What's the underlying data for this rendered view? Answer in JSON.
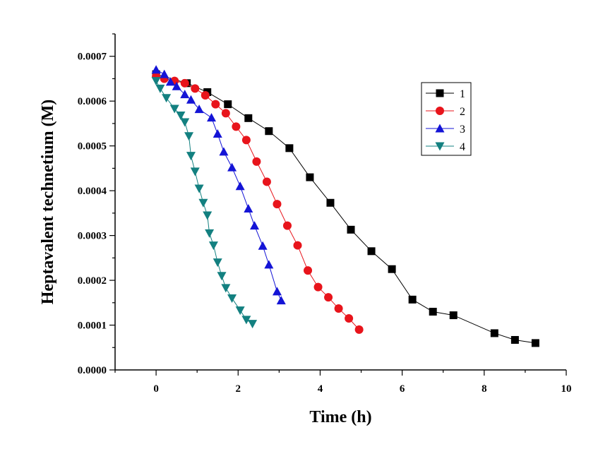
{
  "chart_data": {
    "type": "scatter",
    "xlabel": "Time (h)",
    "ylabel": "Heptavalent technetium (M)",
    "xlim": [
      -1,
      10
    ],
    "ylim": [
      0,
      0.00075
    ],
    "xticks": [
      0,
      2,
      4,
      6,
      8,
      10
    ],
    "xtick_labels": [
      "0",
      "2",
      "4",
      "6",
      "8",
      "10"
    ],
    "yticks": [
      0,
      0.0001,
      0.0002,
      0.0003,
      0.0004,
      0.0005,
      0.0006,
      0.0007
    ],
    "ytick_labels": [
      "0.0000",
      "0.0001",
      "0.0002",
      "0.0003",
      "0.0004",
      "0.0005",
      "0.0006",
      "0.0007"
    ],
    "grid": false,
    "legend_position": "top-right",
    "series": [
      {
        "name": "1",
        "marker": "square",
        "color": "#000000",
        "x": [
          0,
          0.75,
          1.25,
          1.75,
          2.25,
          2.75,
          3.25,
          3.75,
          4.25,
          4.75,
          5.25,
          5.75,
          6.25,
          6.75,
          7.25,
          8.25,
          8.75,
          9.25
        ],
        "y": [
          0.00066,
          0.00064,
          0.00062,
          0.000593,
          0.000562,
          0.000533,
          0.000495,
          0.00043,
          0.000373,
          0.000313,
          0.000265,
          0.000225,
          0.000157,
          0.00013,
          0.000122,
          8.2e-05,
          6.7e-05,
          6e-05
        ]
      },
      {
        "name": "2",
        "marker": "circle",
        "color": "#e8141b",
        "x": [
          0,
          0.2,
          0.45,
          0.7,
          0.95,
          1.2,
          1.45,
          1.7,
          1.95,
          2.2,
          2.45,
          2.7,
          2.95,
          3.2,
          3.45,
          3.7,
          3.95,
          4.2,
          4.45,
          4.7,
          4.95
        ],
        "y": [
          0.000655,
          0.00065,
          0.000645,
          0.00064,
          0.000628,
          0.000613,
          0.000593,
          0.000573,
          0.000543,
          0.000513,
          0.000465,
          0.00042,
          0.00037,
          0.000322,
          0.000278,
          0.000222,
          0.000185,
          0.000162,
          0.000137,
          0.000115,
          9e-05
        ]
      },
      {
        "name": "3",
        "marker": "triangle-up",
        "color": "#1414d6",
        "x": [
          0,
          0.2,
          0.35,
          0.5,
          0.7,
          0.85,
          1.05,
          1.35,
          1.5,
          1.65,
          1.85,
          2.05,
          2.25,
          2.4,
          2.6,
          2.75,
          2.95,
          3.05
        ],
        "y": [
          0.00067,
          0.00066,
          0.000643,
          0.000633,
          0.000615,
          0.000603,
          0.000582,
          0.000563,
          0.000527,
          0.000487,
          0.000452,
          0.00041,
          0.00036,
          0.000322,
          0.000277,
          0.000235,
          0.000175,
          0.000155
        ]
      },
      {
        "name": "4",
        "marker": "triangle-down",
        "color": "#138080",
        "x": [
          0,
          0.1,
          0.25,
          0.45,
          0.6,
          0.7,
          0.8,
          0.85,
          0.95,
          1.05,
          1.15,
          1.25,
          1.3,
          1.4,
          1.5,
          1.6,
          1.7,
          1.85,
          2.05,
          2.2,
          2.35
        ],
        "y": [
          0.000645,
          0.000628,
          0.000607,
          0.000583,
          0.000568,
          0.000553,
          0.000522,
          0.000478,
          0.000443,
          0.000405,
          0.000373,
          0.000345,
          0.000305,
          0.000278,
          0.00024,
          0.00021,
          0.000183,
          0.00016,
          0.000133,
          0.000112,
          0.000103
        ]
      }
    ]
  }
}
